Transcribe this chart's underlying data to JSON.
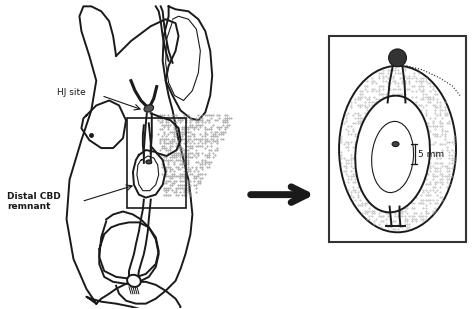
{
  "fig_width": 4.74,
  "fig_height": 3.09,
  "dpi": 100,
  "lc": "#1a1a1a",
  "label_hj": "HJ site",
  "label_cbd": "Distal CBD\nremnant",
  "label_5mm": "5 mm",
  "lw_main": 1.4,
  "lw_thick": 2.2,
  "lw_thin": 0.8
}
